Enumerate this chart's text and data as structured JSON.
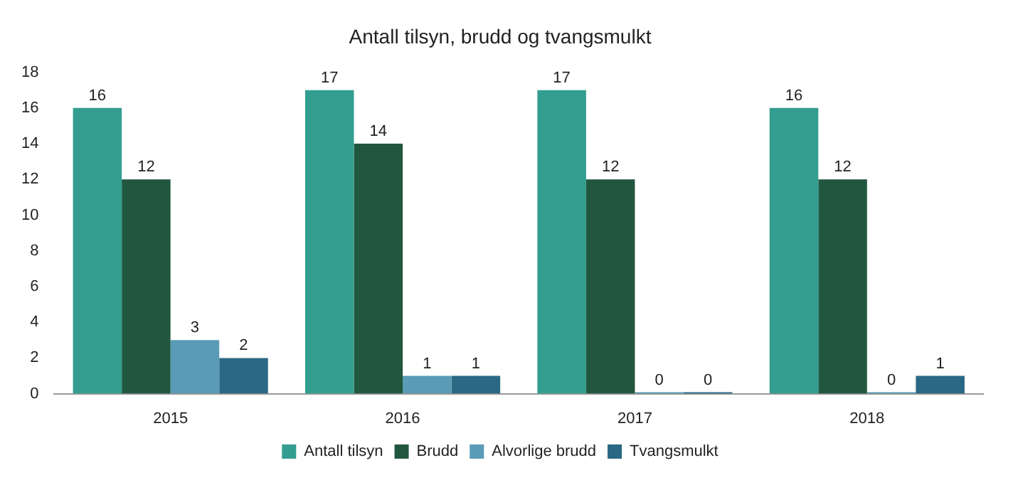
{
  "chart_data": {
    "type": "bar",
    "title": "Antall tilsyn, brudd og tvangsmulkt",
    "categories": [
      "2015",
      "2016",
      "2017",
      "2018"
    ],
    "series": [
      {
        "name": "Antall tilsyn",
        "color": "#339e8f",
        "values": [
          16,
          17,
          17,
          16
        ]
      },
      {
        "name": "Brudd",
        "color": "#22573f",
        "values": [
          12,
          14,
          12,
          12
        ]
      },
      {
        "name": "Alvorlige brudd",
        "color": "#5a9bb5",
        "values": [
          3,
          1,
          0,
          0
        ]
      },
      {
        "name": "Tvangsmulkt",
        "color": "#2a6883",
        "values": [
          2,
          1,
          0,
          1
        ]
      }
    ],
    "ylim": [
      0,
      18
    ],
    "yticks": [
      0,
      2,
      4,
      6,
      8,
      10,
      12,
      14,
      16,
      18
    ],
    "grid": false,
    "legend": "bottom",
    "data_labels": true
  }
}
